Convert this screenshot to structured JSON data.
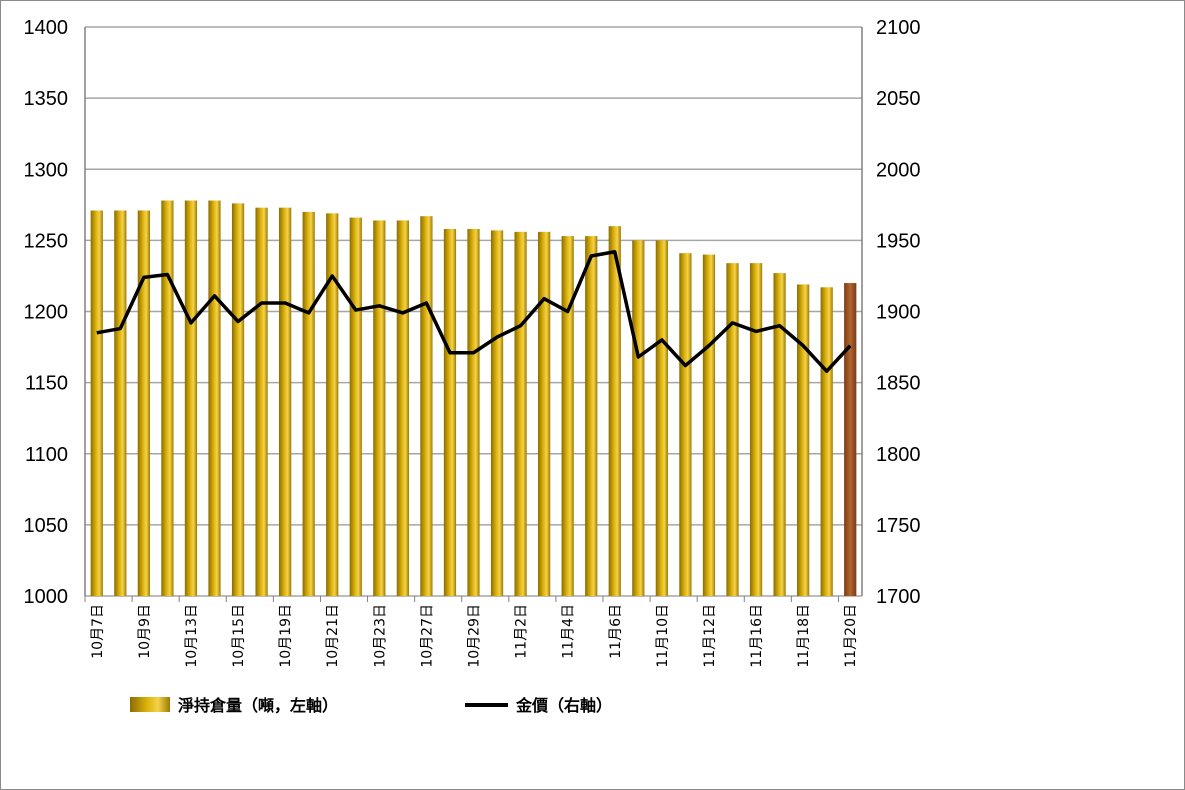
{
  "chart_data": {
    "type": "bar+line",
    "x_tick_labels": [
      "10月7日",
      "10月9日",
      "10月13日",
      "10月15日",
      "10月19日",
      "10月21日",
      "10月23日",
      "10月27日",
      "10月29日",
      "11月2日",
      "11月4日",
      "11月6日",
      "11月10日",
      "11月12日",
      "11月16日",
      "11月18日",
      "11月20日"
    ],
    "left_axis": {
      "min": 1000,
      "max": 1400,
      "step": 50
    },
    "right_axis": {
      "min": 1700,
      "max": 2100,
      "step": 50
    },
    "grid": true,
    "series": [
      {
        "name": "淨持倉量（噸，左軸）",
        "type": "bar",
        "axis": "left",
        "color": "#c9a10a",
        "highlight_last_color": "#a0522d",
        "values": [
          1271,
          1271,
          1271,
          1278,
          1278,
          1278,
          1276,
          1273,
          1273,
          1270,
          1269,
          1266,
          1264,
          1264,
          1267,
          1258,
          1258,
          1257,
          1256,
          1256,
          1253,
          1253,
          1260,
          1250,
          1250,
          1241,
          1240,
          1234,
          1234,
          1227,
          1219,
          1217,
          1220
        ]
      },
      {
        "name": "金價（右軸）",
        "type": "line",
        "axis": "right",
        "color": "#000000",
        "values": [
          1885,
          1888,
          1924,
          1926,
          1892,
          1911,
          1893,
          1906,
          1906,
          1899,
          1925,
          1901,
          1904,
          1899,
          1906,
          1871,
          1871,
          1882,
          1890,
          1909,
          1900,
          1939,
          1942,
          1868,
          1880,
          1862,
          1876,
          1892,
          1886,
          1890,
          1876,
          1858,
          1876
        ]
      }
    ],
    "legend_position": "bottom"
  }
}
